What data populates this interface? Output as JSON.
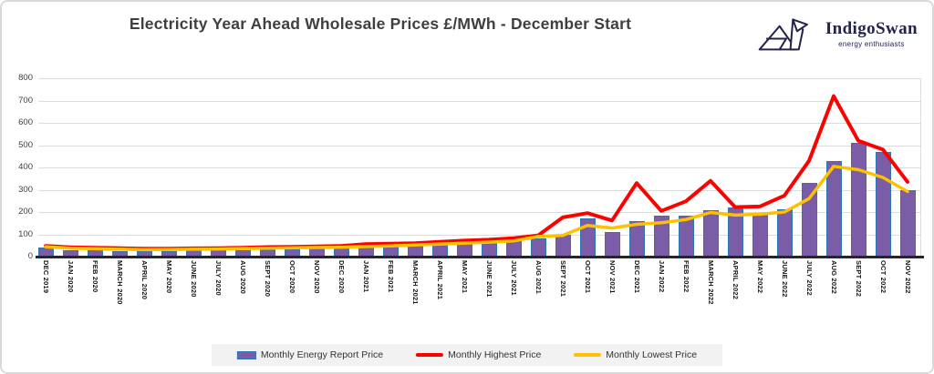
{
  "header": {
    "title": "Electricity Year Ahead Wholesale Prices £/MWh - December Start",
    "logo": {
      "name": "IndigoSwan",
      "tagline": "energy enthusiasts",
      "color": "#23234e"
    }
  },
  "chart_data": {
    "type": "bar",
    "title": "Electricity Year Ahead Wholesale Prices £/MWh - December Start",
    "xlabel": "",
    "ylabel": "",
    "ylim": [
      0,
      800
    ],
    "yticks": [
      0,
      100,
      200,
      300,
      400,
      500,
      600,
      700,
      800
    ],
    "grid": true,
    "legend_position": "bottom",
    "categories": [
      "DEC 2019",
      "JAN 2020",
      "FEB 2020",
      "MARCH 2020",
      "APRIL 2020",
      "MAY 2020",
      "JUNE 2020",
      "JULY 2020",
      "AUG 2020",
      "SEPT 2020",
      "OCT 2020",
      "NOV 2020",
      "DEC 2020",
      "JAN 2021",
      "FEB 2021",
      "MARCH 2021",
      "APRIL 2021",
      "MAY 2021",
      "JUNE 2021",
      "JULY 2021",
      "AUG 2021",
      "SEPT 2021",
      "OCT 2021",
      "NOV 2021",
      "DEC 2021",
      "JAN 2022",
      "FEB 2022",
      "MARCH 2022",
      "APRIL 2022",
      "MAY 2022",
      "JUNE 2022",
      "JULY 2022",
      "AUG 2022",
      "SEPT 2022",
      "OCT 2022",
      "NOV 2022"
    ],
    "series": [
      {
        "name": "Monthly Energy Report Price",
        "render": "bar",
        "color": "#7a5ca7",
        "border_color": "#2e75b6",
        "values": [
          42,
          29,
          27,
          26,
          26,
          25,
          27,
          28,
          29,
          32,
          32,
          36,
          36,
          42,
          45,
          49,
          55,
          63,
          67,
          72,
          83,
          100,
          172,
          110,
          160,
          185,
          182,
          207,
          220,
          190,
          212,
          330,
          430,
          510,
          470,
          300
        ]
      },
      {
        "name": "Monthly Highest Price",
        "render": "line",
        "color": "#ff0000",
        "values": [
          48,
          42,
          40,
          38,
          36,
          36,
          37,
          38,
          40,
          43,
          44,
          46,
          48,
          56,
          58,
          60,
          66,
          72,
          76,
          83,
          95,
          176,
          195,
          162,
          330,
          205,
          248,
          340,
          222,
          225,
          274,
          430,
          720,
          520,
          480,
          335
        ]
      },
      {
        "name": "Monthly Lowest Price",
        "render": "line",
        "color": "#ffc000",
        "values": [
          44,
          38,
          35,
          33,
          31,
          32,
          33,
          34,
          36,
          38,
          39,
          41,
          42,
          45,
          48,
          52,
          56,
          60,
          65,
          70,
          90,
          95,
          140,
          128,
          145,
          152,
          166,
          198,
          186,
          190,
          200,
          260,
          405,
          390,
          355,
          292
        ]
      }
    ]
  },
  "colors": {
    "gridline": "#dcdcdc",
    "axis": "#262626",
    "title_text": "#3f3f3f",
    "legend_bg": "#f2f2f2",
    "frame_border": "#d9d9d9"
  }
}
